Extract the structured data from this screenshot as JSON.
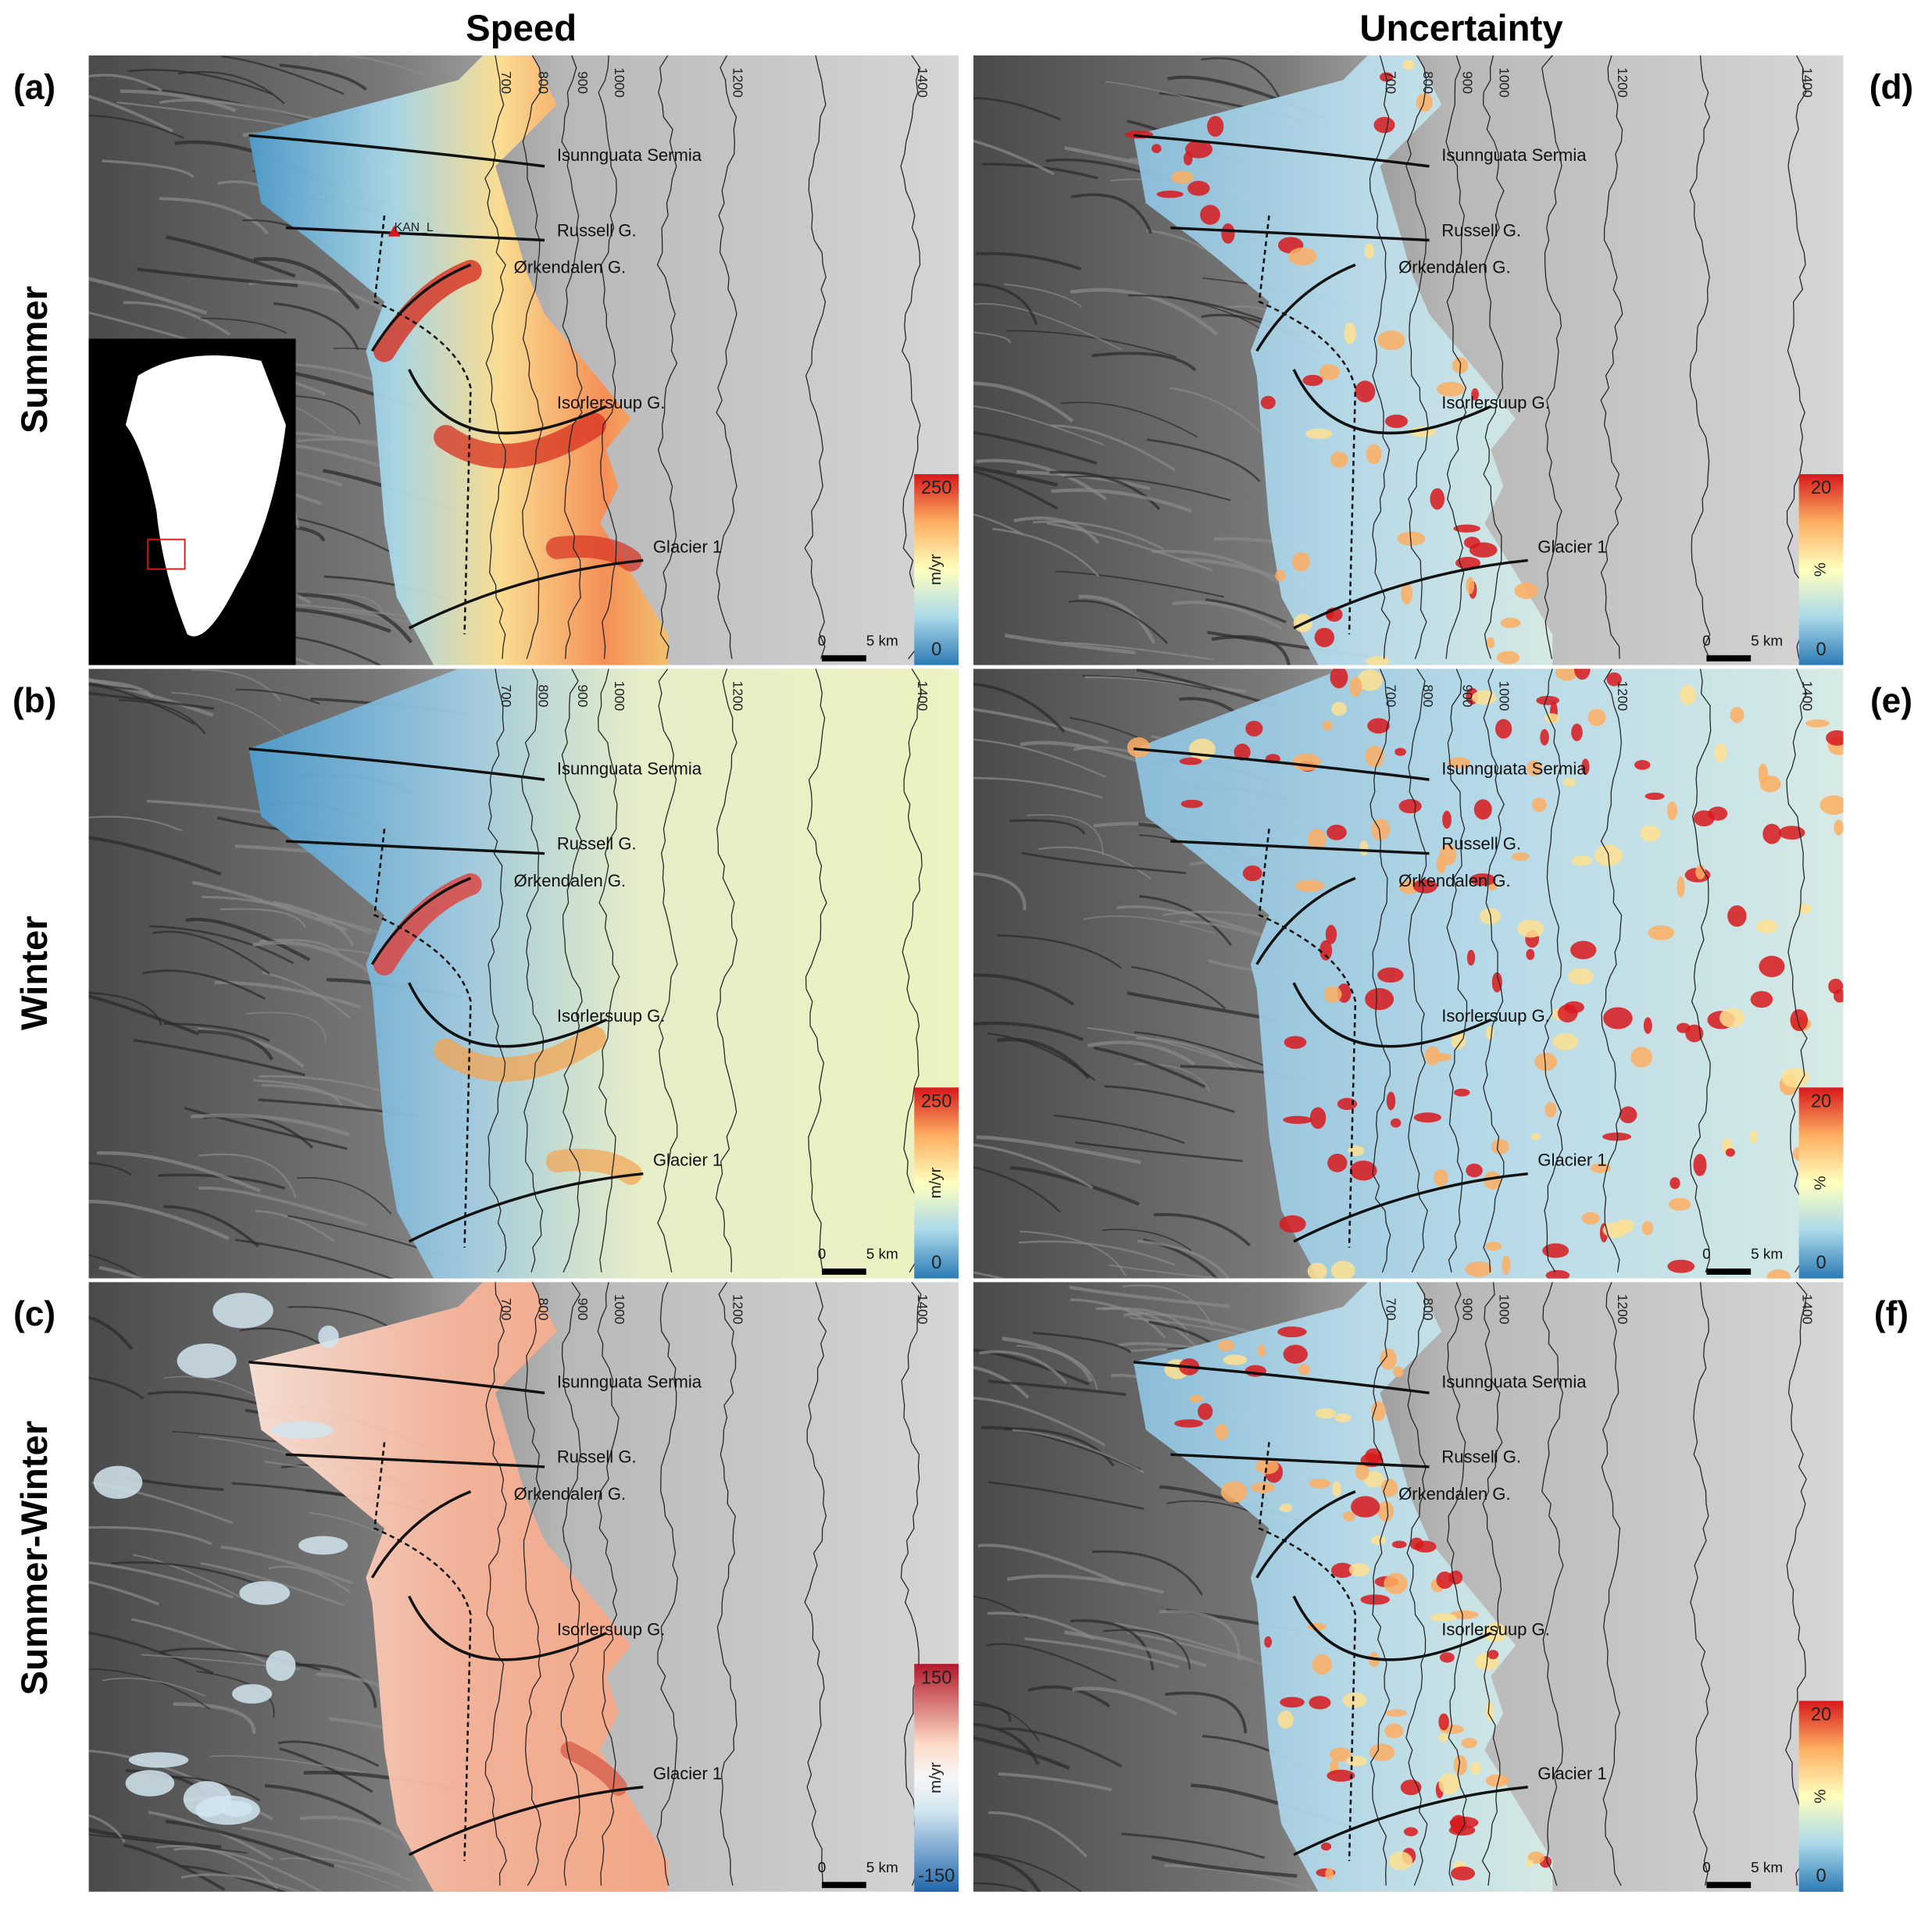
{
  "column_titles": [
    "Speed",
    "Uncertainty"
  ],
  "row_titles": [
    "Summer",
    "Winter",
    "Summer-Winter"
  ],
  "contour_labels": [
    700,
    800,
    900,
    1000,
    1200,
    1400
  ],
  "glaciers": [
    "Isunnguata Sermia",
    "Russell G.",
    "Ørkendalen G.",
    "Isorlersuup G.",
    "Glacier 1"
  ],
  "station": "KAN_L",
  "scale_bar": {
    "start": "0",
    "length": "5 km"
  },
  "panels": [
    {
      "letter": "(a)",
      "colorbar": {
        "max": 250,
        "min": 0,
        "unit": "m/yr"
      }
    },
    {
      "letter": "(b)",
      "colorbar": {
        "max": 250,
        "min": 0,
        "unit": "m/yr"
      }
    },
    {
      "letter": "(c)",
      "colorbar": {
        "max": 150,
        "min": -150,
        "unit": "m/yr"
      }
    },
    {
      "letter": "(d)",
      "colorbar": {
        "max": 20,
        "min": 0,
        "unit": "%"
      }
    },
    {
      "letter": "(e)",
      "colorbar": {
        "max": 20,
        "min": 0,
        "unit": "%"
      }
    },
    {
      "letter": "(f)",
      "colorbar": {
        "max": 20,
        "min": 0,
        "unit": "%"
      }
    }
  ]
}
